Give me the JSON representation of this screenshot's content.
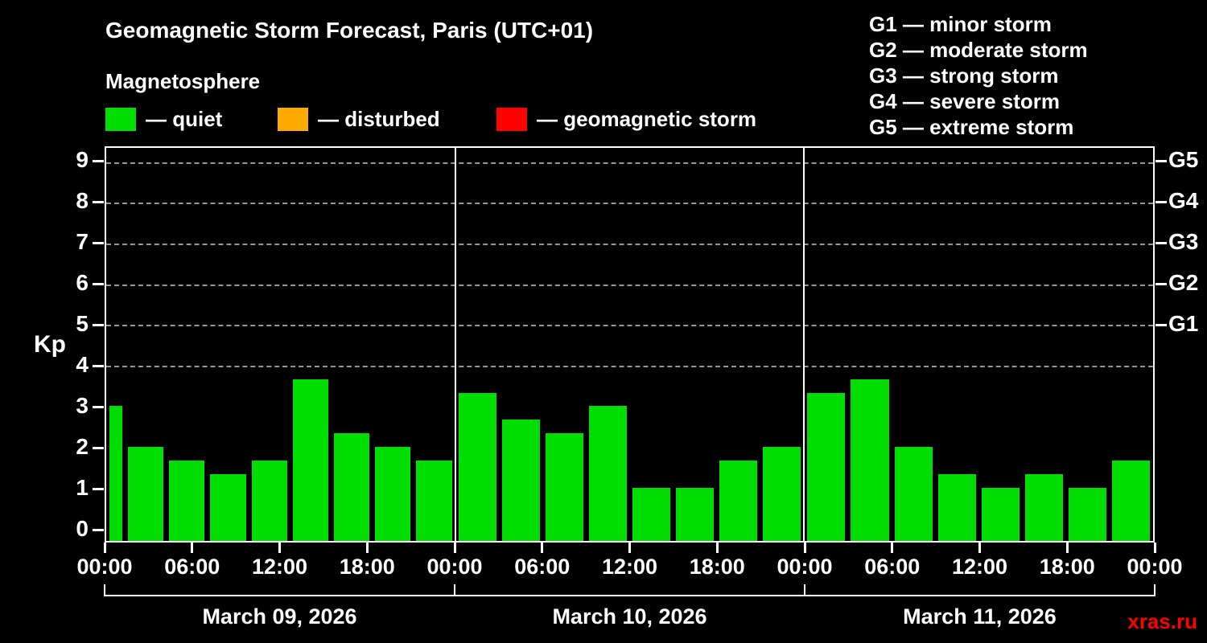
{
  "page": {
    "background": "#000000",
    "text_color": "#ffffff"
  },
  "header": {
    "title": "Geomagnetic Storm Forecast, Paris (UTC+01)",
    "subtitle": "Magnetosphere",
    "legend": [
      {
        "label": "— quiet",
        "color": "#00dd00"
      },
      {
        "label": "— disturbed",
        "color": "#ffaa00"
      },
      {
        "label": "— geomagnetic storm",
        "color": "#ff0000"
      }
    ],
    "g_scale_legend": [
      "G1 — minor storm",
      "G2 — moderate storm",
      "G3 — strong storm",
      "G4 — severe storm",
      "G5 — extreme storm"
    ]
  },
  "chart_data": {
    "type": "bar",
    "title": "Geomagnetic Storm Forecast, Paris (UTC+01)",
    "ylabel": "Kp",
    "ylim": [
      0,
      9
    ],
    "y_ticks": [
      0,
      1,
      2,
      3,
      4,
      5,
      6,
      7,
      8,
      9
    ],
    "right_labels": [
      {
        "kp": 9,
        "label": "G5"
      },
      {
        "kp": 8,
        "label": "G4"
      },
      {
        "kp": 7,
        "label": "G3"
      },
      {
        "kp": 6,
        "label": "G2"
      },
      {
        "kp": 5,
        "label": "G1"
      }
    ],
    "dashed_gridlines": [
      4,
      5,
      6,
      7,
      8,
      9
    ],
    "x_tick_labels": [
      "00:00",
      "06:00",
      "12:00",
      "18:00",
      "00:00",
      "06:00",
      "12:00",
      "18:00",
      "00:00",
      "06:00",
      "12:00",
      "18:00",
      "00:00"
    ],
    "bar_color": "#00dd00",
    "first_bar_narrow": true,
    "legend_position": "top",
    "grid": "dashed horizontal at storm levels",
    "days": [
      {
        "date": "March 09, 2026",
        "kp": [
          3.0,
          2.0,
          1.67,
          1.33,
          1.67,
          3.67,
          2.33,
          2.0,
          1.67
        ]
      },
      {
        "date": "March 10, 2026",
        "kp": [
          3.33,
          2.67,
          2.33,
          3.0,
          1.0,
          1.0,
          1.67,
          2.0
        ]
      },
      {
        "date": "March 11, 2026",
        "kp": [
          3.33,
          3.67,
          2.0,
          1.33,
          1.0,
          1.33,
          1.0,
          1.67
        ]
      }
    ]
  },
  "footer": {
    "watermark": "xras.ru",
    "watermark_color": "#ff0000"
  }
}
